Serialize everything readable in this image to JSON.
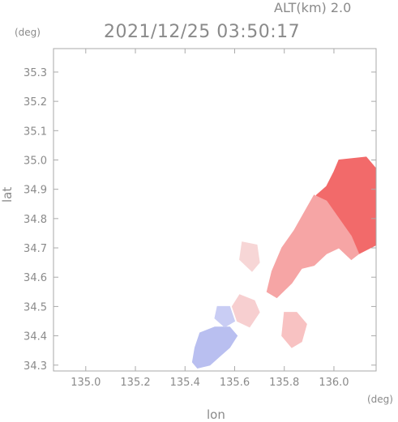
{
  "header": {
    "altitude_label": "ALT(km) 2.0",
    "timestamp": "2021/12/25 03:50:17"
  },
  "axes": {
    "x_label": "lon",
    "y_label": "lat",
    "x_unit": "(deg)",
    "y_unit": "(deg)"
  },
  "chart_data": {
    "type": "heatmap",
    "xlim": [
      134.87,
      136.17
    ],
    "ylim": [
      34.28,
      35.38
    ],
    "x_ticks": [
      {
        "value": 135.0,
        "label": "135.0"
      },
      {
        "value": 135.2,
        "label": "135.2"
      },
      {
        "value": 135.4,
        "label": "135.4"
      },
      {
        "value": 135.6,
        "label": "135.6"
      },
      {
        "value": 135.8,
        "label": "135.8"
      },
      {
        "value": 136.0,
        "label": "136.0"
      }
    ],
    "y_ticks": [
      {
        "value": 34.3,
        "label": "34.3"
      },
      {
        "value": 34.4,
        "label": "34.4"
      },
      {
        "value": 34.5,
        "label": "34.5"
      },
      {
        "value": 34.6,
        "label": "34.6"
      },
      {
        "value": 34.7,
        "label": "34.7"
      },
      {
        "value": 34.8,
        "label": "34.8"
      },
      {
        "value": 34.9,
        "label": "34.9"
      },
      {
        "value": 35.0,
        "label": "35.0"
      },
      {
        "value": 35.1,
        "label": "35.1"
      },
      {
        "value": 35.2,
        "label": "35.2"
      },
      {
        "value": 35.3,
        "label": "35.3"
      }
    ],
    "regions": [
      {
        "name": "ne-strong",
        "color": "#f26a6a",
        "points": [
          [
            136.02,
            35.0
          ],
          [
            136.13,
            35.01
          ],
          [
            136.17,
            34.97
          ],
          [
            136.17,
            34.71
          ],
          [
            136.1,
            34.68
          ],
          [
            136.06,
            34.74
          ],
          [
            136.0,
            34.72
          ],
          [
            135.94,
            34.75
          ],
          [
            135.92,
            34.83
          ],
          [
            135.93,
            34.88
          ],
          [
            135.97,
            34.91
          ],
          [
            136.0,
            34.96
          ]
        ]
      },
      {
        "name": "central-band",
        "color": "#f6a5a5",
        "points": [
          [
            135.92,
            34.88
          ],
          [
            135.97,
            34.86
          ],
          [
            136.02,
            34.8
          ],
          [
            136.07,
            34.74
          ],
          [
            136.1,
            34.68
          ],
          [
            136.07,
            34.66
          ],
          [
            136.02,
            34.7
          ],
          [
            135.97,
            34.68
          ],
          [
            135.92,
            34.64
          ],
          [
            135.87,
            34.63
          ],
          [
            135.83,
            34.58
          ],
          [
            135.77,
            34.53
          ],
          [
            135.73,
            34.55
          ],
          [
            135.75,
            34.62
          ],
          [
            135.79,
            34.7
          ],
          [
            135.84,
            34.76
          ],
          [
            135.88,
            34.82
          ]
        ]
      },
      {
        "name": "south-east",
        "color": "#f8c2c2",
        "points": [
          [
            135.8,
            34.48
          ],
          [
            135.85,
            34.48
          ],
          [
            135.89,
            34.44
          ],
          [
            135.87,
            34.38
          ],
          [
            135.83,
            34.36
          ],
          [
            135.79,
            34.4
          ]
        ]
      },
      {
        "name": "central-pink",
        "color": "#f7cfd0",
        "points": [
          [
            135.62,
            34.54
          ],
          [
            135.68,
            34.52
          ],
          [
            135.7,
            34.48
          ],
          [
            135.66,
            34.43
          ],
          [
            135.61,
            34.45
          ],
          [
            135.59,
            34.5
          ]
        ]
      },
      {
        "name": "north-patch",
        "color": "#f7d6d6",
        "points": [
          [
            135.63,
            34.72
          ],
          [
            135.69,
            34.71
          ],
          [
            135.7,
            34.65
          ],
          [
            135.67,
            34.62
          ],
          [
            135.62,
            34.66
          ]
        ]
      },
      {
        "name": "sw-blue",
        "color": "#b9bff0",
        "points": [
          [
            135.46,
            34.41
          ],
          [
            135.52,
            34.43
          ],
          [
            135.58,
            34.43
          ],
          [
            135.61,
            34.4
          ],
          [
            135.58,
            34.36
          ],
          [
            135.54,
            34.33
          ],
          [
            135.5,
            34.3
          ],
          [
            135.45,
            34.29
          ],
          [
            135.43,
            34.31
          ],
          [
            135.44,
            34.36
          ]
        ]
      },
      {
        "name": "sw-blue-upper",
        "color": "#c9cdf4",
        "points": [
          [
            135.53,
            34.5
          ],
          [
            135.58,
            34.5
          ],
          [
            135.6,
            34.45
          ],
          [
            135.56,
            34.43
          ],
          [
            135.52,
            34.46
          ]
        ]
      }
    ]
  }
}
